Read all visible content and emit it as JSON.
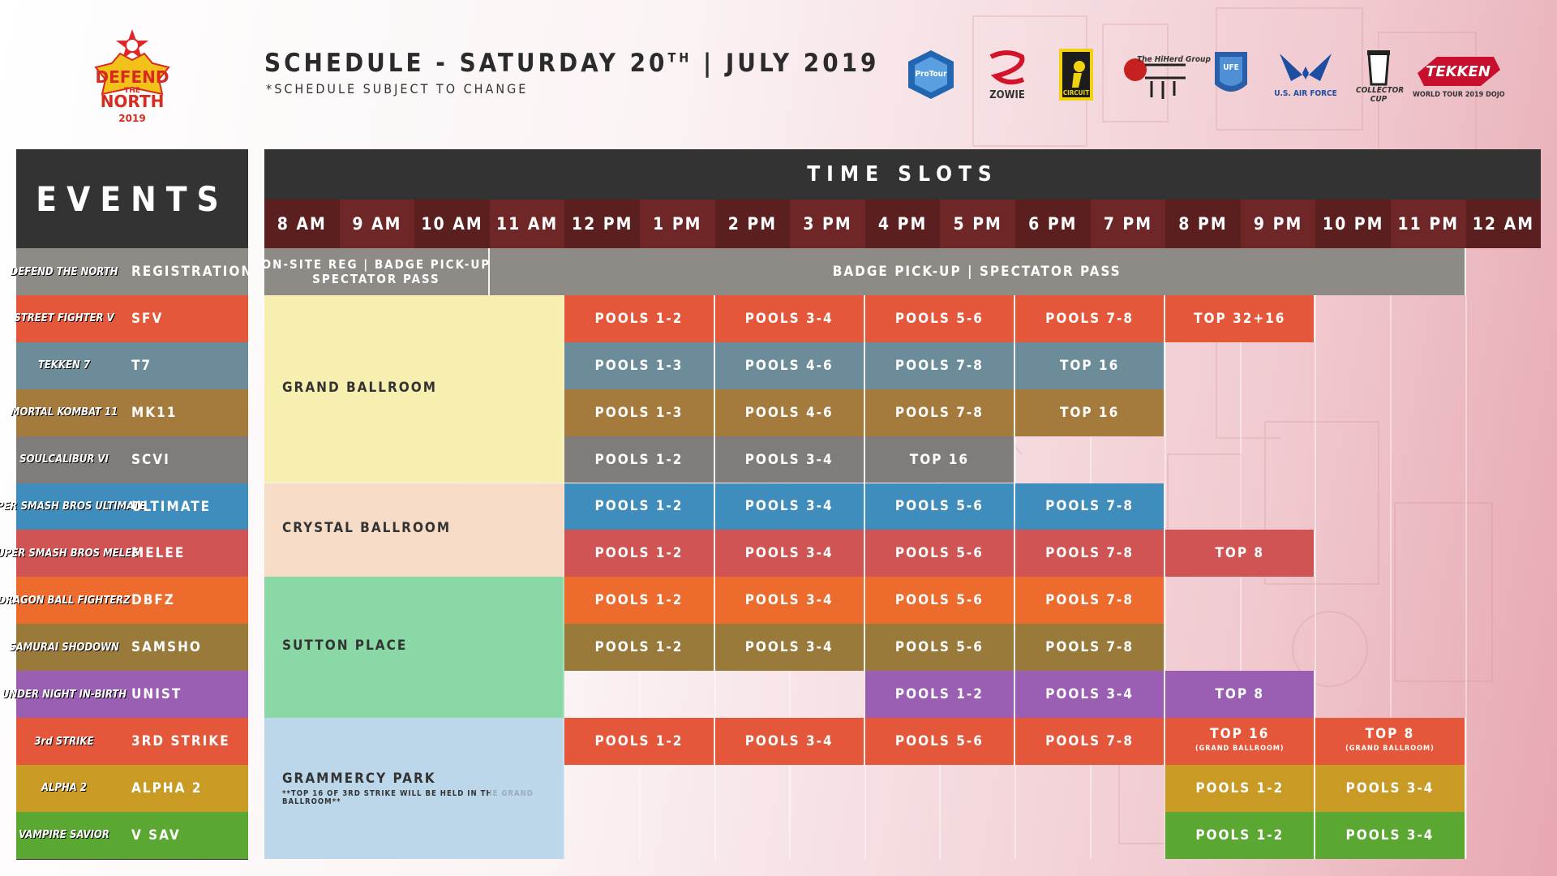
{
  "header": {
    "title_main": "SCHEDULE - SATURDAY 20",
    "title_sup": "TH",
    "title_end": " | JULY 2019",
    "subtitle": "*SCHEDULE SUBJECT TO CHANGE"
  },
  "logo": {
    "lines": [
      "DEFEND",
      "THE",
      "NORTH",
      "2019"
    ]
  },
  "sponsors": [
    {
      "name": "Capcom Pro Tour",
      "caption": "ProTour"
    },
    {
      "name": "Zowie",
      "caption": "ZOWIE"
    },
    {
      "name": "Janky Circuit",
      "caption": "CIRCUIT"
    },
    {
      "name": "The Hi-Herd Group",
      "caption": "The HiHerd Group"
    },
    {
      "name": "UFE",
      "caption": "UFE"
    },
    {
      "name": "U.S. Air Force",
      "caption": "U.S. AIR FORCE"
    },
    {
      "name": "Collector Cup",
      "caption": "COLLECTOR CUP"
    },
    {
      "name": "Tekken World Tour Dojo",
      "caption": "WORLD TOUR 2019 DOJO"
    }
  ],
  "events_title": "EVENTS",
  "time_slots_title": "TIME SLOTS",
  "hours": [
    "8 AM",
    "9 AM",
    "10 AM",
    "11 AM",
    "12 PM",
    "1 PM",
    "2 PM",
    "3 PM",
    "4 PM",
    "5 PM",
    "6 PM",
    "7 PM",
    "8 PM",
    "9 PM",
    "10 PM",
    "11 PM",
    "12 AM"
  ],
  "colors": {
    "header_dark": "#333333",
    "hour_bg": "#5b1f1f",
    "registration": "#8e8a86",
    "sfv": "#e5573a",
    "t7": "#6b8c98",
    "mk11": "#a57a3d",
    "scvi": "#7f7c79",
    "ultimate": "#3f8dbd",
    "melee": "#d05454",
    "dbfz": "#ec6b2d",
    "samsho": "#9a7a3a",
    "unist": "#9a5fb3",
    "third_strike": "#e5573a",
    "alpha2": "#c99a24",
    "vsav": "#5aa832",
    "venue_grand": "#f6efb0",
    "venue_crystal": "#f6dcc6",
    "venue_sutton": "#8ad8a6",
    "venue_grammercy": "#bcd6ea"
  },
  "events": [
    {
      "key": "registration",
      "label": "REGISTRATION",
      "logo": "DEFEND THE NORTH"
    },
    {
      "key": "sfv",
      "label": "SFV",
      "logo": "STREET FIGHTER V"
    },
    {
      "key": "t7",
      "label": "T7",
      "logo": "TEKKEN 7"
    },
    {
      "key": "mk11",
      "label": "MK11",
      "logo": "MORTAL KOMBAT 11"
    },
    {
      "key": "scvi",
      "label": "SCVI",
      "logo": "SOULCALIBUR VI"
    },
    {
      "key": "ultimate",
      "label": "ULTIMATE",
      "logo": "SUPER SMASH BROS ULTIMATE"
    },
    {
      "key": "melee",
      "label": "MELEE",
      "logo": "SUPER SMASH BROS MELEE"
    },
    {
      "key": "dbfz",
      "label": "DBFZ",
      "logo": "DRAGON BALL FIGHTERZ"
    },
    {
      "key": "samsho",
      "label": "SAMSHO",
      "logo": "SAMURAI SHODOWN"
    },
    {
      "key": "unist",
      "label": "UNIST",
      "logo": "UNDER NIGHT IN-BIRTH"
    },
    {
      "key": "third_strike",
      "label": "3RD STRIKE",
      "logo": "3rd STRIKE"
    },
    {
      "key": "alpha2",
      "label": "ALPHA 2",
      "logo": "ALPHA 2"
    },
    {
      "key": "vsav",
      "label": "V SAV",
      "logo": "VAMPIRE SAVIOR"
    }
  ],
  "registration": {
    "onsite_line1": "ON-SITE REG | BADGE PICK-UP",
    "onsite_line2": "SPECTATOR PASS",
    "badge": "BADGE PICK-UP | SPECTATOR PASS"
  },
  "venues": [
    {
      "name": "GRAND BALLROOM",
      "note": ""
    },
    {
      "name": "CRYSTAL BALLROOM",
      "note": ""
    },
    {
      "name": "SUTTON PLACE",
      "note": ""
    },
    {
      "name": "GRAMMERCY PARK",
      "note": "**TOP 16 OF 3RD STRIKE WILL BE HELD IN THE GRAND BALLROOM**"
    }
  ],
  "schedule": {
    "sfv": [
      "POOLS 1-2",
      "POOLS 3-4",
      "POOLS 5-6",
      "POOLS 7-8",
      "TOP 32+16"
    ],
    "t7": [
      "POOLS 1-3",
      "POOLS 4-6",
      "POOLS 7-8",
      "TOP 16"
    ],
    "mk11": [
      "POOLS 1-3",
      "POOLS 4-6",
      "POOLS 7-8",
      "TOP 16"
    ],
    "scvi": [
      "POOLS 1-2",
      "POOLS 3-4",
      "TOP 16"
    ],
    "ultimate": [
      "POOLS 1-2",
      "POOLS 3-4",
      "POOLS 5-6",
      "POOLS 7-8"
    ],
    "melee": [
      "POOLS 1-2",
      "POOLS 3-4",
      "POOLS 5-6",
      "POOLS 7-8",
      "TOP 8"
    ],
    "dbfz": [
      "POOLS 1-2",
      "POOLS 3-4",
      "POOLS 5-6",
      "POOLS 7-8"
    ],
    "samsho": [
      "POOLS 1-2",
      "POOLS 3-4",
      "POOLS 5-6",
      "POOLS 7-8"
    ],
    "unist": [
      "POOLS 1-2",
      "POOLS 3-4",
      "TOP 8"
    ],
    "third_strike": [
      "POOLS 1-2",
      "POOLS 3-4",
      "POOLS 5-6",
      "POOLS 7-8",
      "TOP 16",
      "TOP 8"
    ],
    "third_strike_sub": "(GRAND BALLROOM)",
    "alpha2": [
      "POOLS 1-2",
      "POOLS 3-4"
    ],
    "vsav": [
      "POOLS 1-2",
      "POOLS 3-4"
    ]
  }
}
